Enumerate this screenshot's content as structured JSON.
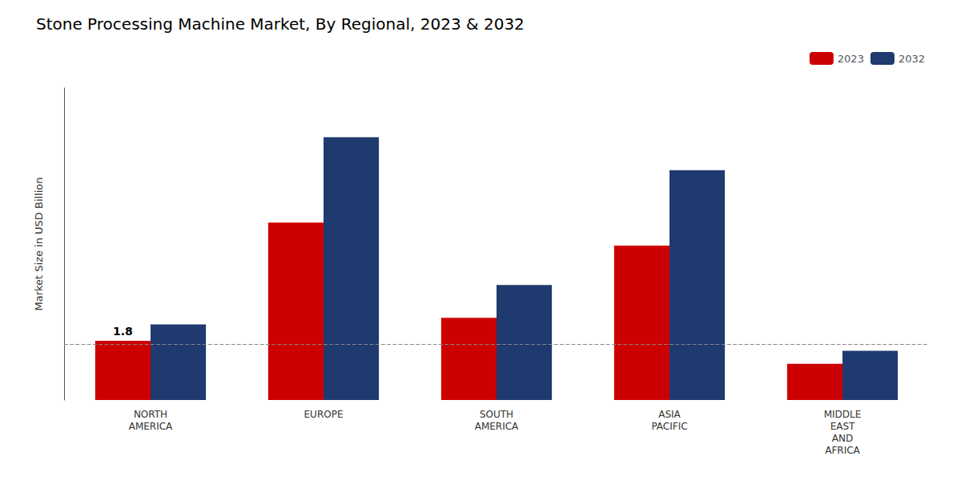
{
  "chart_data": {
    "type": "bar",
    "title": "Stone Processing Machine Market, By Regional, 2023 & 2032",
    "ylabel": "Market Size in USD Billion",
    "categories": [
      "NORTH\nAMERICA",
      "EUROPE",
      "SOUTH\nAMERICA",
      "ASIA\nPACIFIC",
      "MIDDLE\nEAST\nAND\nAFRICA"
    ],
    "series": [
      {
        "name": "2023",
        "color": "#cc0000",
        "values": [
          1.8,
          5.4,
          2.5,
          4.7,
          1.1
        ]
      },
      {
        "name": "2032",
        "color": "#1e3a6e",
        "values": [
          2.3,
          8.0,
          3.5,
          7.0,
          1.5
        ]
      }
    ],
    "ylim": [
      0,
      9.5
    ],
    "tick_labels": "x",
    "grid": false,
    "legend": "upper right",
    "annotations": [
      {
        "text": "1.8",
        "x": "NORTH\nAMERICA",
        "series": "2023",
        "y": 1.8
      }
    ],
    "reference_lines": [
      {
        "y": 1.7,
        "line_style": "dashed",
        "color": "#888888"
      }
    ]
  }
}
